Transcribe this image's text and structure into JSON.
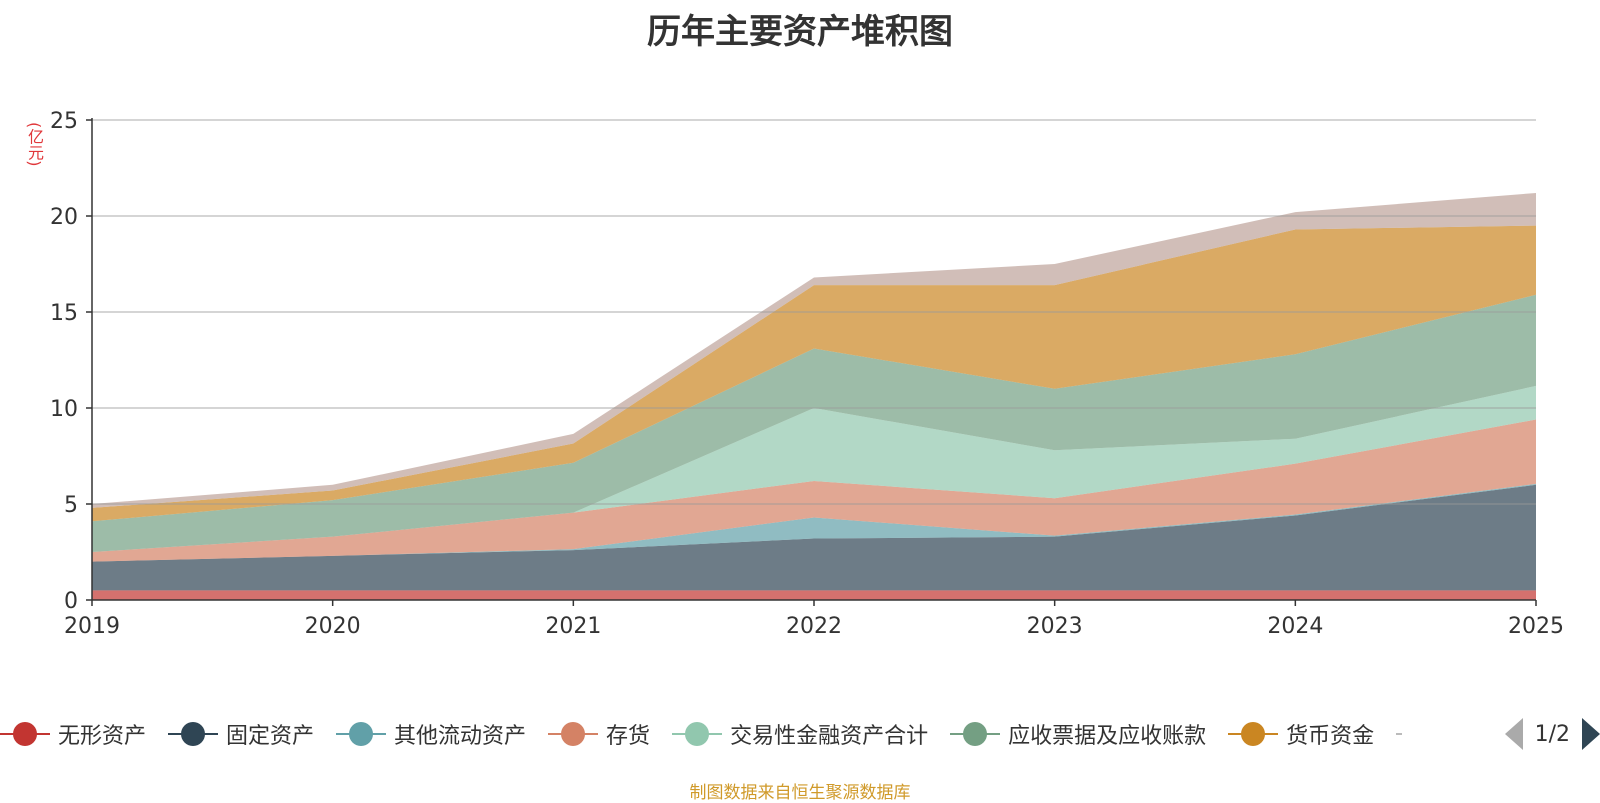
{
  "chart_data": {
    "type": "area",
    "stacked": true,
    "title": "历年主要资产堆积图",
    "ylabel": "(亿元)",
    "xlabel": "",
    "x": [
      "2019",
      "2020",
      "2021",
      "2022",
      "2023",
      "2024",
      "2025"
    ],
    "ylim": [
      0,
      25
    ],
    "yticks": [
      0,
      5,
      10,
      15,
      20,
      25
    ],
    "grid": true,
    "legend_position": "bottom",
    "series": [
      {
        "name": "无形资产",
        "color": "#c23531",
        "values": [
          0.5,
          0.5,
          0.5,
          0.5,
          0.5,
          0.5,
          0.5
        ]
      },
      {
        "name": "固定资产",
        "color": "#2f4554",
        "values": [
          1.5,
          1.8,
          2.1,
          2.7,
          2.8,
          3.9,
          5.5
        ]
      },
      {
        "name": "其他流动资产",
        "color": "#61a0a8",
        "values": [
          0.0,
          0.0,
          0.05,
          1.1,
          0.05,
          0.05,
          0.05
        ]
      },
      {
        "name": "存货",
        "color": "#d48265",
        "values": [
          0.5,
          1.0,
          1.9,
          1.9,
          1.95,
          2.65,
          3.35
        ]
      },
      {
        "name": "交易性金融资产合计",
        "color": "#91c7ae",
        "values": [
          0.0,
          0.0,
          0.0,
          3.8,
          2.5,
          1.3,
          1.75
        ]
      },
      {
        "name": "应收票据及应收账款",
        "color": "#749f83",
        "values": [
          1.6,
          1.9,
          2.6,
          3.1,
          3.2,
          4.4,
          4.75
        ]
      },
      {
        "name": "货币资金",
        "color": "#ca8622",
        "values": [
          0.7,
          0.5,
          1.0,
          3.3,
          5.4,
          6.5,
          3.6
        ]
      },
      {
        "name": "",
        "color": "#bda29a",
        "values": [
          0.2,
          0.3,
          0.5,
          0.4,
          1.1,
          0.9,
          1.7
        ]
      }
    ]
  },
  "pager": {
    "text": "1/2"
  },
  "source_note": "制图数据来自恒生聚源数据库"
}
